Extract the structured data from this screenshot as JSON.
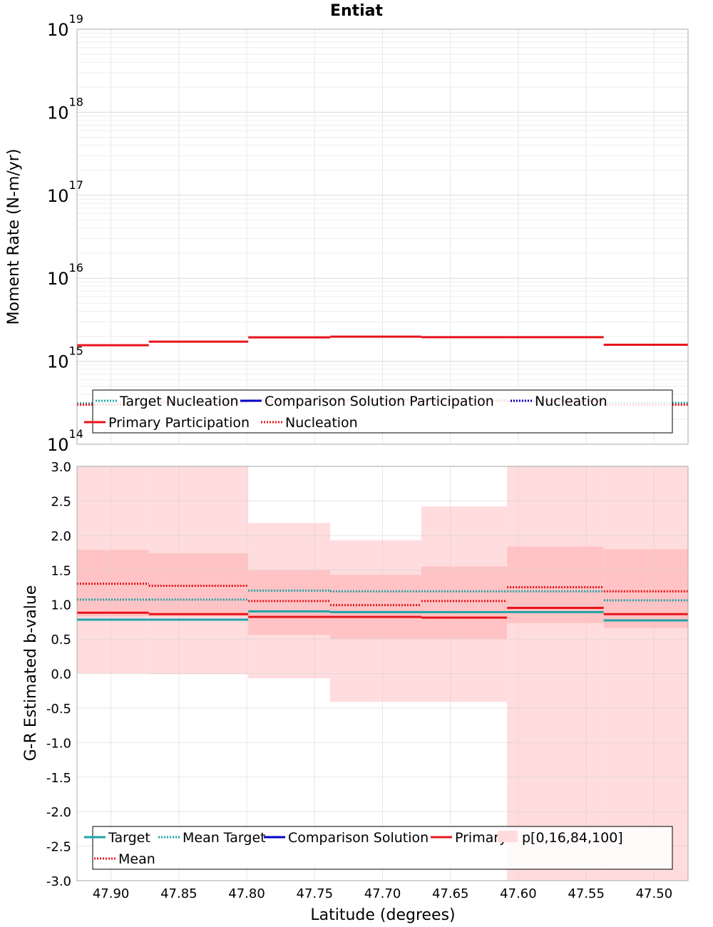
{
  "title": "Entiat",
  "x_axis": {
    "label": "Latitude (degrees)",
    "lim": [
      47.925,
      47.475
    ],
    "ticks": [
      47.9,
      47.85,
      47.8,
      47.75,
      47.7,
      47.65,
      47.6,
      47.55,
      47.5
    ],
    "tick_labels": [
      "47.90",
      "47.85",
      "47.80",
      "47.75",
      "47.70",
      "47.65",
      "47.60",
      "47.55",
      "47.50"
    ]
  },
  "bin_edges": [
    47.925,
    47.8721,
    47.7989,
    47.7386,
    47.6714,
    47.6083,
    47.5371,
    47.475
  ],
  "chart_data": [
    {
      "type": "line",
      "title": "Entiat",
      "ylabel": "Moment Rate (N-m/yr)",
      "yscale": "log",
      "ylim": [
        100000000000000.0,
        1e+19
      ],
      "y_ticks": [
        {
          "base": "10",
          "exp": "14",
          "value": 100000000000000.0
        },
        {
          "base": "10",
          "exp": "15",
          "value": 1000000000000000.0
        },
        {
          "base": "10",
          "exp": "16",
          "value": 1e+16
        },
        {
          "base": "10",
          "exp": "17",
          "value": 1e+17
        },
        {
          "base": "10",
          "exp": "18",
          "value": 1e+18
        },
        {
          "base": "10",
          "exp": "19",
          "value": 1e+19
        }
      ],
      "grid": true,
      "legend": {
        "position": "bottom",
        "entries": [
          {
            "label": "Target Nucleation",
            "color": "#1fa3a6",
            "style": "dotted"
          },
          {
            "label": "Comparison Solution Participation",
            "color": "#0000c8",
            "style": "solid"
          },
          {
            "label": "Nucleation",
            "color": "#0000c8",
            "style": "dotted"
          },
          {
            "label": "Primary Participation",
            "color": "#e8141c",
            "style": "solid"
          },
          {
            "label": "Nucleation",
            "color": "#e8141c",
            "style": "dotted"
          }
        ]
      },
      "series": [
        {
          "name": "Primary Participation",
          "color": "#e8141c",
          "style": "solid",
          "values": [
            1560000000000000.0,
            1720000000000000.0,
            1940000000000000.0,
            1980000000000000.0,
            1950000000000000.0,
            1950000000000000.0,
            1580000000000000.0
          ]
        },
        {
          "name": "Target Nucleation",
          "color": "#1fa3a6",
          "style": "dotted",
          "values": [
            310000000000000.0,
            325000000000000.0,
            340000000000000.0,
            345000000000000.0,
            340000000000000.0,
            335000000000000.0,
            315000000000000.0
          ]
        },
        {
          "name": "Nucleation",
          "color": "#e8141c",
          "style": "dotted",
          "values": [
            300000000000000.0,
            320000000000000.0,
            335000000000000.0,
            340000000000000.0,
            335000000000000.0,
            330000000000000.0,
            300000000000000.0
          ]
        }
      ]
    },
    {
      "type": "line",
      "xlabel": "Latitude (degrees)",
      "ylabel": "G-R Estimated b-value",
      "ylim": [
        -3.0,
        3.0
      ],
      "y_ticks": [
        3.0,
        2.5,
        2.0,
        1.5,
        1.0,
        0.5,
        0.0,
        -0.5,
        -1.0,
        -1.5,
        -2.0,
        -2.5,
        -3.0
      ],
      "y_tick_labels": [
        "3.0",
        "2.5",
        "2.0",
        "1.5",
        "1.0",
        "0.5",
        "0.0",
        "-0.5",
        "-1.0",
        "-1.5",
        "-2.0",
        "-2.5",
        "-3.0"
      ],
      "grid": true,
      "legend": {
        "position": "bottom",
        "entries": [
          {
            "label": "Target",
            "color": "#1fa3a6",
            "style": "solid"
          },
          {
            "label": "Mean Target",
            "color": "#1fa3a6",
            "style": "dotted"
          },
          {
            "label": "Comparison Solution",
            "color": "#0000c8",
            "style": "solid"
          },
          {
            "label": "Primary",
            "color": "#e8141c",
            "style": "solid"
          },
          {
            "label": "p[0,16,84,100]",
            "color": "#ffdcdc",
            "style": "band"
          },
          {
            "label": "Mean",
            "color": "#e8141c",
            "style": "dotted"
          }
        ]
      },
      "bands": {
        "p0": [
          0.0,
          -0.01,
          -0.07,
          -0.41,
          -0.41,
          -3.0,
          -3.0
        ],
        "p16": [
          0.83,
          0.83,
          0.56,
          0.5,
          0.5,
          0.73,
          0.66
        ],
        "p84": [
          1.79,
          1.74,
          1.5,
          1.43,
          1.55,
          1.84,
          1.8
        ],
        "p100": [
          3.0,
          3.0,
          2.18,
          1.93,
          2.42,
          3.0,
          3.0
        ]
      },
      "series": [
        {
          "name": "Target",
          "color": "#1fa3a6",
          "style": "solid",
          "values": [
            0.78,
            0.78,
            0.9,
            0.89,
            0.89,
            0.89,
            0.77
          ]
        },
        {
          "name": "Mean Target",
          "color": "#1fa3a6",
          "style": "dotted",
          "values": [
            1.07,
            1.07,
            1.2,
            1.19,
            1.19,
            1.19,
            1.06
          ]
        },
        {
          "name": "Primary",
          "color": "#e8141c",
          "style": "solid",
          "values": [
            0.88,
            0.86,
            0.82,
            0.82,
            0.81,
            0.95,
            0.86
          ]
        },
        {
          "name": "Mean",
          "color": "#e8141c",
          "style": "dotted",
          "values": [
            1.3,
            1.27,
            1.05,
            0.99,
            1.05,
            1.25,
            1.19
          ]
        }
      ]
    }
  ]
}
